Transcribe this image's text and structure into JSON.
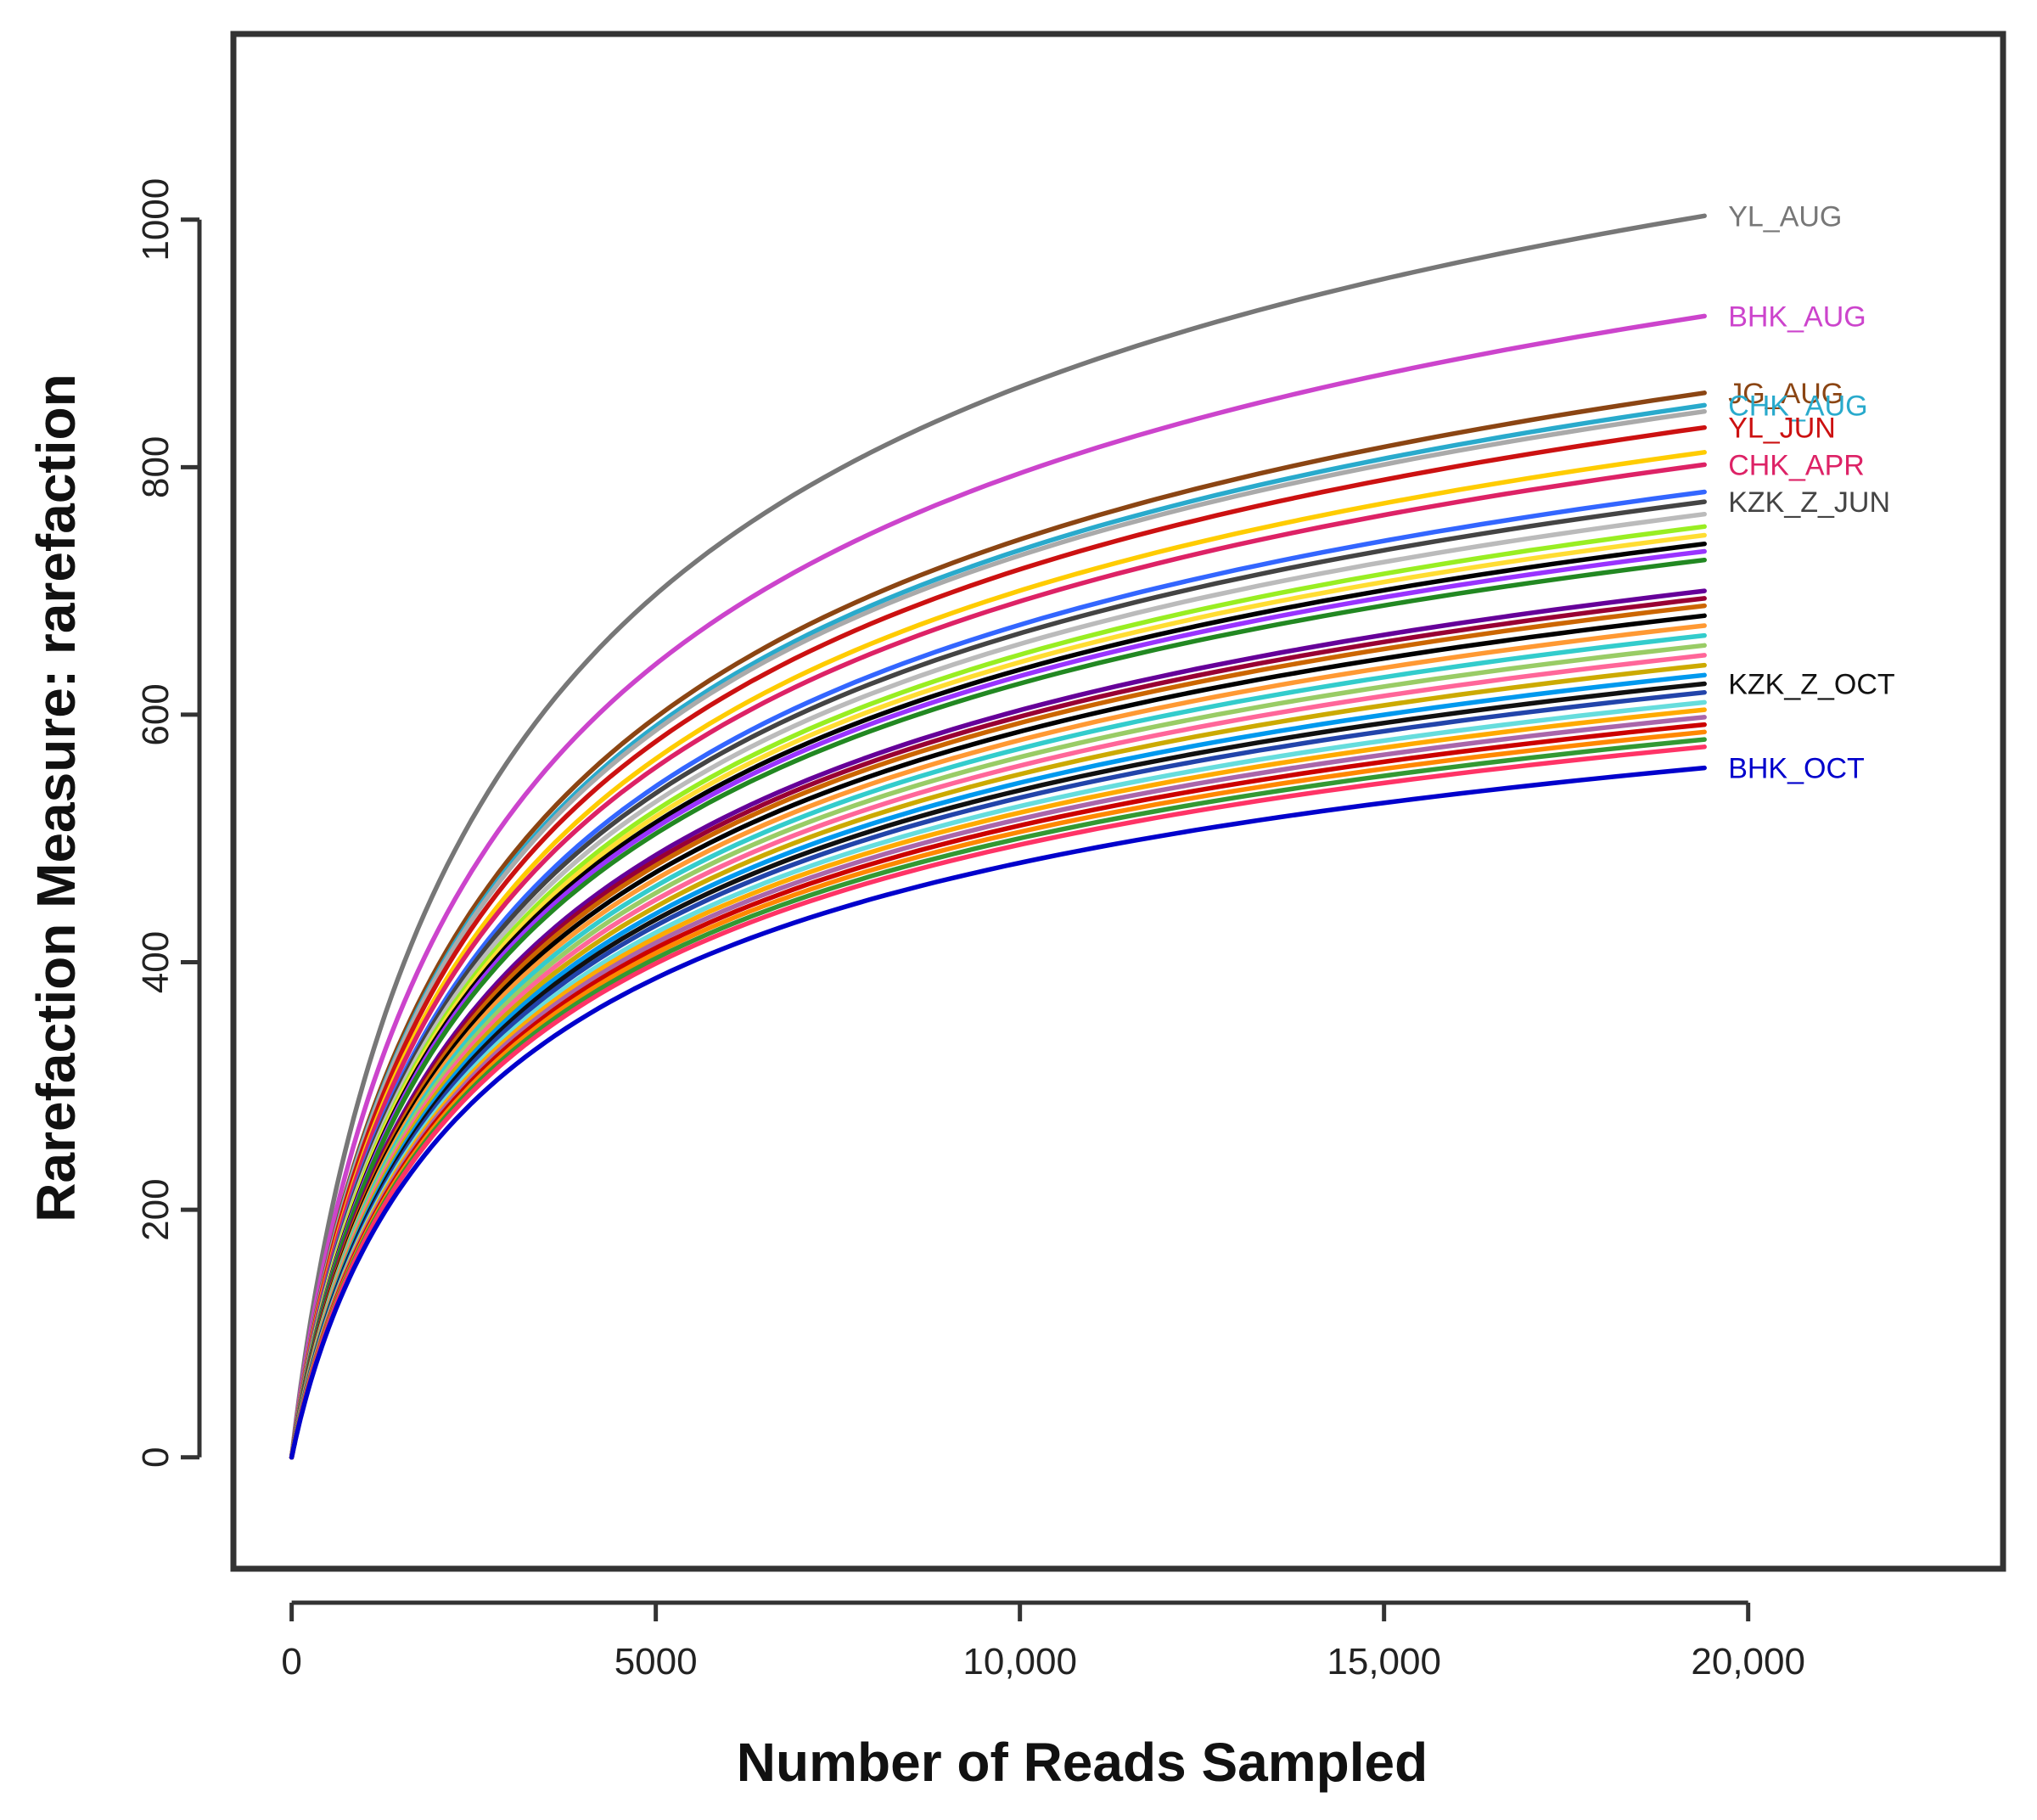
{
  "chart_data": {
    "type": "line",
    "title": "",
    "xlabel": "Number of Reads Sampled",
    "ylabel": "Rarefaction Measure: rarefaction",
    "xlim": [
      -800,
      23500
    ],
    "ylim": [
      -90,
      1150
    ],
    "x_ticks": [
      {
        "value": 0,
        "label": "0"
      },
      {
        "value": 5000,
        "label": "5000"
      },
      {
        "value": 10000,
        "label": "10,000"
      },
      {
        "value": 15000,
        "label": "15,000"
      },
      {
        "value": 20000,
        "label": "20,000"
      }
    ],
    "y_ticks": [
      {
        "value": 0,
        "label": "0"
      },
      {
        "value": 200,
        "label": "200"
      },
      {
        "value": 400,
        "label": "400"
      },
      {
        "value": 600,
        "label": "600"
      },
      {
        "value": 800,
        "label": "800"
      },
      {
        "value": 1000,
        "label": "1000"
      }
    ],
    "grid": false,
    "legend": "none (series labelled at line ends)",
    "x_max": 19400,
    "series": [
      {
        "name": "YL_AUG",
        "final": 1003,
        "color": "#777777"
      },
      {
        "name": "BHK_AUG",
        "final": 922,
        "color": "#cc44cc"
      },
      {
        "name": "JG_AUG",
        "final": 860,
        "color": "#8B4513"
      },
      {
        "name": "CHK_AUG",
        "final": 850,
        "color": "#29aacc"
      },
      {
        "name": "",
        "final": 845,
        "color": "#aaaaaa"
      },
      {
        "name": "YL_JUN",
        "final": 832,
        "color": "#cc1111"
      },
      {
        "name": "",
        "final": 812,
        "color": "#ffcc00"
      },
      {
        "name": "CHK_APR",
        "final": 802,
        "color": "#dd2266"
      },
      {
        "name": "",
        "final": 780,
        "color": "#3366ff"
      },
      {
        "name": "KZK_Z_JUN",
        "final": 772,
        "color": "#444444"
      },
      {
        "name": "",
        "final": 762,
        "color": "#bbbbbb"
      },
      {
        "name": "",
        "final": 752,
        "color": "#99ee22"
      },
      {
        "name": "",
        "final": 745,
        "color": "#ffdd33"
      },
      {
        "name": "",
        "final": 738,
        "color": "#000000"
      },
      {
        "name": "",
        "final": 732,
        "color": "#9933ff"
      },
      {
        "name": "",
        "final": 725,
        "color": "#228822"
      },
      {
        "name": "",
        "final": 700,
        "color": "#660099"
      },
      {
        "name": "",
        "final": 694,
        "color": "#990033"
      },
      {
        "name": "",
        "final": 688,
        "color": "#cc6600"
      },
      {
        "name": "",
        "final": 680,
        "color": "#000000"
      },
      {
        "name": "",
        "final": 672,
        "color": "#ff9933"
      },
      {
        "name": "",
        "final": 664,
        "color": "#33cccc"
      },
      {
        "name": "",
        "final": 656,
        "color": "#99cc66"
      },
      {
        "name": "",
        "final": 648,
        "color": "#ff6699"
      },
      {
        "name": "",
        "final": 640,
        "color": "#ccaa00"
      },
      {
        "name": "",
        "final": 632,
        "color": "#0099ee"
      },
      {
        "name": "KZK_Z_OCT",
        "final": 625,
        "color": "#111111"
      },
      {
        "name": "",
        "final": 618,
        "color": "#2244aa"
      },
      {
        "name": "",
        "final": 610,
        "color": "#66dddd"
      },
      {
        "name": "",
        "final": 604,
        "color": "#ffaa00"
      },
      {
        "name": "",
        "final": 598,
        "color": "#aa66aa"
      },
      {
        "name": "",
        "final": 592,
        "color": "#cc0000"
      },
      {
        "name": "",
        "final": 586,
        "color": "#ff8800"
      },
      {
        "name": "",
        "final": 580,
        "color": "#339933"
      },
      {
        "name": "",
        "final": 574,
        "color": "#ff3366"
      },
      {
        "name": "BHK_OCT",
        "final": 557,
        "color": "#0000cc"
      }
    ]
  }
}
